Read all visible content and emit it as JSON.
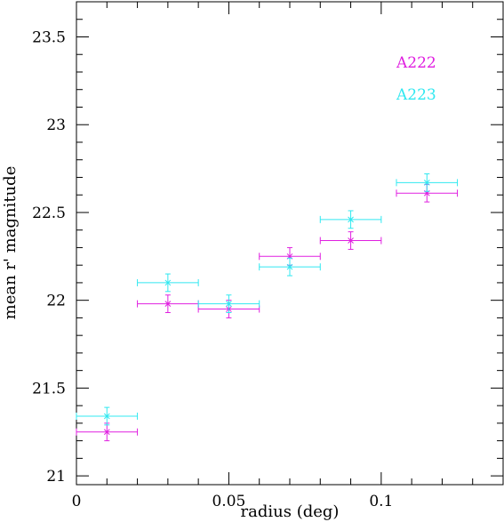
{
  "chart_data": {
    "type": "scatter",
    "title": "",
    "xlabel": "radius (deg)",
    "ylabel": "mean r' magnitude",
    "xlim": [
      0,
      0.14
    ],
    "ylim": [
      20.95,
      23.7
    ],
    "xticks": [
      0,
      0.05,
      0.1
    ],
    "xtick_labels": [
      "0",
      "0.05",
      "0.1"
    ],
    "yticks": [
      21,
      21.5,
      22,
      22.5,
      23,
      23.5
    ],
    "ytick_labels": [
      "21",
      "21.5",
      "22",
      "22.5",
      "23",
      "23.5"
    ],
    "grid": false,
    "legend_position": "top-right",
    "series": [
      {
        "name": "A222",
        "color": "#e020e0",
        "points": [
          {
            "x": 0.01,
            "y": 21.25,
            "xerr": 0.01,
            "yerr": 0.05
          },
          {
            "x": 0.03,
            "y": 21.98,
            "xerr": 0.01,
            "yerr": 0.05
          },
          {
            "x": 0.05,
            "y": 21.95,
            "xerr": 0.01,
            "yerr": 0.05
          },
          {
            "x": 0.07,
            "y": 22.25,
            "xerr": 0.01,
            "yerr": 0.05
          },
          {
            "x": 0.09,
            "y": 22.34,
            "xerr": 0.01,
            "yerr": 0.05
          },
          {
            "x": 0.115,
            "y": 22.61,
            "xerr": 0.01,
            "yerr": 0.05
          }
        ]
      },
      {
        "name": "A223",
        "color": "#30e8f0",
        "points": [
          {
            "x": 0.01,
            "y": 21.34,
            "xerr": 0.01,
            "yerr": 0.05
          },
          {
            "x": 0.03,
            "y": 22.1,
            "xerr": 0.01,
            "yerr": 0.05
          },
          {
            "x": 0.05,
            "y": 21.98,
            "xerr": 0.01,
            "yerr": 0.05
          },
          {
            "x": 0.07,
            "y": 22.19,
            "xerr": 0.01,
            "yerr": 0.05
          },
          {
            "x": 0.09,
            "y": 22.46,
            "xerr": 0.01,
            "yerr": 0.05
          },
          {
            "x": 0.115,
            "y": 22.67,
            "xerr": 0.01,
            "yerr": 0.05
          }
        ]
      }
    ]
  }
}
